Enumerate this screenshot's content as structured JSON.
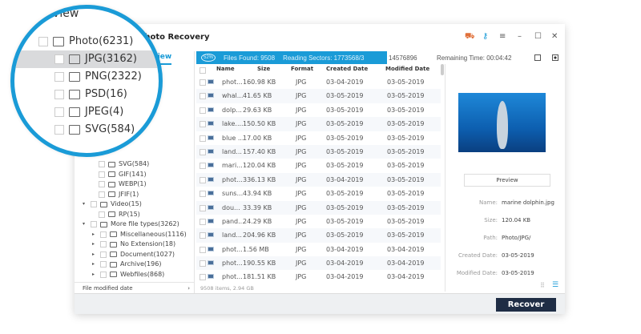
{
  "app": {
    "title": "Photo Recovery",
    "icons": [
      "cart-icon",
      "key-icon",
      "menu-icon",
      "minimize-icon",
      "maximize-icon",
      "close-icon"
    ]
  },
  "left": {
    "tab": "Files View",
    "magnified_tab": "e View",
    "magnified": [
      {
        "label": "Photo(6231)"
      },
      {
        "label": "JPG(3162)"
      },
      {
        "label": "PNG(2322)"
      },
      {
        "label": "PSD(16)"
      },
      {
        "label": "JPEG(4)"
      },
      {
        "label": "SVG(584)"
      }
    ],
    "tree": [
      {
        "label": "SVG(584)"
      },
      {
        "label": "GIF(141)"
      },
      {
        "label": "WEBP(1)"
      },
      {
        "label": "JFIF(1)"
      },
      {
        "label": "Video(15)"
      },
      {
        "label": "RP(15)"
      },
      {
        "label": "More file types(3262)"
      },
      {
        "label": "Miscellaneous(1116)"
      },
      {
        "label": "No Extension(18)"
      },
      {
        "label": "Document(1027)"
      },
      {
        "label": "Archive(196)"
      },
      {
        "label": "Webfiles(868)"
      }
    ],
    "footer": "File modified date"
  },
  "progress": {
    "percent": "52%",
    "files_found": "Files Found:  9508",
    "reading": "Reading Sectors: 1773568/3",
    "reading_rest": "14576896",
    "remaining": "Remaining Time: 00:04:42"
  },
  "table": {
    "headers": [
      "Name",
      "Size",
      "Format",
      "Created Date",
      "Modified Date"
    ],
    "rows": [
      [
        "phot...",
        "160.98  KB",
        "JPG",
        "03-04-2019",
        "03-05-2019"
      ],
      [
        "whal...",
        "41.65  KB",
        "JPG",
        "03-05-2019",
        "03-05-2019"
      ],
      [
        "dolp...",
        "29.63  KB",
        "JPG",
        "03-05-2019",
        "03-05-2019"
      ],
      [
        "lake....",
        "150.50  KB",
        "JPG",
        "03-05-2019",
        "03-05-2019"
      ],
      [
        "blue ...",
        "17.00  KB",
        "JPG",
        "03-05-2019",
        "03-05-2019"
      ],
      [
        "land...",
        "157.40  KB",
        "JPG",
        "03-05-2019",
        "03-05-2019"
      ],
      [
        "mari...",
        "120.04  KB",
        "JPG",
        "03-05-2019",
        "03-05-2019"
      ],
      [
        "phot...",
        "336.13  KB",
        "JPG",
        "03-04-2019",
        "03-05-2019"
      ],
      [
        "suns...",
        "43.94  KB",
        "JPG",
        "03-05-2019",
        "03-05-2019"
      ],
      [
        "dou...",
        "33.39  KB",
        "JPG",
        "03-05-2019",
        "03-05-2019"
      ],
      [
        "pand...",
        "24.29  KB",
        "JPG",
        "03-05-2019",
        "03-05-2019"
      ],
      [
        "land...",
        "204.96  KB",
        "JPG",
        "03-05-2019",
        "03-05-2019"
      ],
      [
        "phot...",
        "1.56  MB",
        "JPG",
        "03-04-2019",
        "03-04-2019"
      ],
      [
        "phot...",
        "190.55  KB",
        "JPG",
        "03-04-2019",
        "03-04-2019"
      ],
      [
        "phot...",
        "181.51  KB",
        "JPG",
        "03-04-2019",
        "03-04-2019"
      ]
    ]
  },
  "status": "9508 items, 2.94  GB",
  "preview": {
    "button": "Preview",
    "details": [
      {
        "k": "Name:",
        "v": "marine dolphin.jpg"
      },
      {
        "k": "Size:",
        "v": "120.04  KB"
      },
      {
        "k": "Path:",
        "v": "Photo/JPG/"
      },
      {
        "k": "Created Date:",
        "v": "03-05-2019"
      },
      {
        "k": "Modified Date:",
        "v": "03-05-2019"
      }
    ]
  },
  "recover": "Recover",
  "colors": {
    "accent": "#1a9bd7",
    "recover_bg": "#1f2d45"
  }
}
